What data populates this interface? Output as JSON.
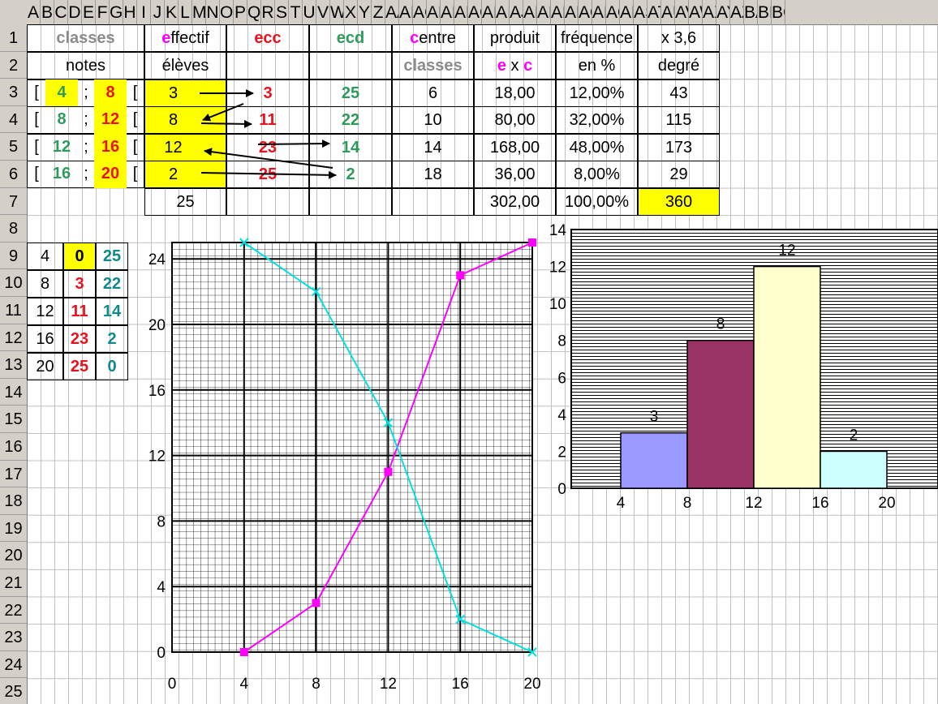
{
  "columns": [
    "A",
    "B",
    "C",
    "D",
    "E",
    "F",
    "G",
    "H",
    "I",
    "J",
    "K",
    "L",
    "M",
    "N",
    "O",
    "P",
    "Q",
    "R",
    "S",
    "T",
    "U",
    "V",
    "W",
    "X",
    "Y",
    "Z",
    "AA",
    "AB",
    "AC",
    "AD",
    "AE",
    "AF",
    "AG",
    "AH",
    "AI",
    "AJ",
    "AK",
    "AL",
    "AM",
    "AN",
    "AO",
    "AP",
    "AQ",
    "AR",
    "AS",
    "AT",
    "AU",
    "AV",
    "AW",
    "AX",
    "AY",
    "AZ",
    "BA",
    "BB",
    "BC"
  ],
  "rows": [
    "1",
    "2",
    "3",
    "4",
    "5",
    "6",
    "7",
    "8",
    "9",
    "10",
    "11",
    "12",
    "13",
    "14",
    "15",
    "16",
    "17",
    "18",
    "19",
    "20",
    "21",
    "22",
    "23",
    "24",
    "25"
  ],
  "table": {
    "headers_row1": {
      "classes": "classes",
      "effectif_first": "e",
      "effectif_rest": "ffectif",
      "ecc": "ecc",
      "ecd": "ecd",
      "centre_first": "c",
      "centre_rest": "entre",
      "produit": "produit",
      "frequence": "fréquence",
      "x36": "x 3,6"
    },
    "headers_row2": {
      "notes": "notes",
      "eleves": "élèves",
      "classes": "classes",
      "e": "e",
      "x": " x ",
      "c": "c",
      "en_pct": "en %",
      "degre": "degré"
    },
    "bracket_open": "[",
    "semicolon": ";",
    "rows": [
      {
        "low": "4",
        "high": "8",
        "effectif": "3",
        "ecc": "3",
        "ecd": "25",
        "centre": "6",
        "produit": "18,00",
        "frequence": "12,00%",
        "degre": "43"
      },
      {
        "low": "8",
        "high": "12",
        "effectif": "8",
        "ecc": "11",
        "ecd": "22",
        "centre": "10",
        "produit": "80,00",
        "frequence": "32,00%",
        "degre": "115"
      },
      {
        "low": "12",
        "high": "16",
        "effectif": "12",
        "ecc": "23",
        "ecd": "14",
        "centre": "14",
        "produit": "168,00",
        "frequence": "48,00%",
        "degre": "173"
      },
      {
        "low": "16",
        "high": "20",
        "effectif": "2",
        "ecc": "25",
        "ecd": "2",
        "centre": "18",
        "produit": "36,00",
        "frequence": "8,00%",
        "degre": "29"
      }
    ],
    "totals": {
      "effectif": "25",
      "produit": "302,00",
      "frequence": "100,00%",
      "degre": "360"
    }
  },
  "small_table": [
    [
      "4",
      "0",
      "25"
    ],
    [
      "8",
      "3",
      "22"
    ],
    [
      "12",
      "11",
      "14"
    ],
    [
      "16",
      "23",
      "2"
    ],
    [
      "20",
      "25",
      "0"
    ]
  ],
  "colors": {
    "yellow": "#ffff00",
    "ecc": "#e8121e",
    "ecd": "#2e9a5c",
    "magenta": "#ff00ff",
    "cyan": "#00e0e0",
    "grid": "#c0c0c0"
  },
  "chart_data": [
    {
      "type": "line",
      "x": [
        4,
        8,
        12,
        16,
        20
      ],
      "series": [
        {
          "values": [
            0,
            3,
            11,
            23,
            25
          ],
          "color": "#ff00ff",
          "marker": "square"
        },
        {
          "values": [
            25,
            22,
            14,
            2,
            0
          ],
          "color": "#00e0e0",
          "marker": "x"
        }
      ],
      "xticks": [
        "0",
        "4",
        "8",
        "12",
        "16",
        "20"
      ],
      "yticks": [
        "0",
        "4",
        "8",
        "12",
        "16",
        "20",
        "24"
      ],
      "xlim": [
        0,
        20
      ],
      "ylim": [
        0,
        25
      ],
      "grid": true,
      "title": "",
      "xlabel": "",
      "ylabel": ""
    },
    {
      "type": "bar",
      "categories": [
        "4-8",
        "8-12",
        "12-16",
        "16-20"
      ],
      "values": [
        3,
        8,
        12,
        2
      ],
      "data_labels": [
        "3",
        "8",
        "12",
        "2"
      ],
      "bar_colors": [
        "#9999ff",
        "#993366",
        "#ffffcc",
        "#ccffff"
      ],
      "xticks": [
        "4",
        "8",
        "12",
        "16",
        "20"
      ],
      "yticks": [
        "0",
        "2",
        "4",
        "6",
        "8",
        "10",
        "12",
        "14"
      ],
      "ylim": [
        0,
        14
      ],
      "title": "",
      "xlabel": "",
      "ylabel": ""
    }
  ]
}
